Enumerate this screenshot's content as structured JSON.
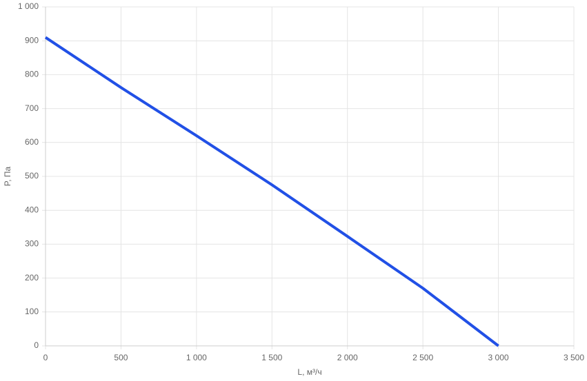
{
  "chart_data": {
    "type": "line",
    "x": [
      0,
      500,
      1000,
      1500,
      2000,
      2500,
      3000
    ],
    "series": [
      {
        "name": "P",
        "color": "#2150e6",
        "values": [
          910,
          762,
          620,
          475,
          323,
          170,
          0
        ]
      }
    ],
    "xlabel": "L, м³/ч",
    "ylabel": "P, Па",
    "xlim": [
      0,
      3500
    ],
    "xticks": [
      0,
      500,
      {
        "value": 1000,
        "label": "1 000"
      },
      {
        "value": 1500,
        "label": "1 500"
      },
      {
        "value": 2000,
        "label": "2 000"
      },
      {
        "value": 2500,
        "label": "2 500"
      },
      {
        "value": 3000,
        "label": "3 000"
      },
      {
        "value": 3500,
        "label": "3 500"
      }
    ],
    "ylim": [
      0,
      1000
    ],
    "yticks": [
      0,
      100,
      200,
      300,
      400,
      500,
      600,
      700,
      800,
      900,
      {
        "value": 1000,
        "label": "1 000"
      }
    ],
    "grid": true
  }
}
